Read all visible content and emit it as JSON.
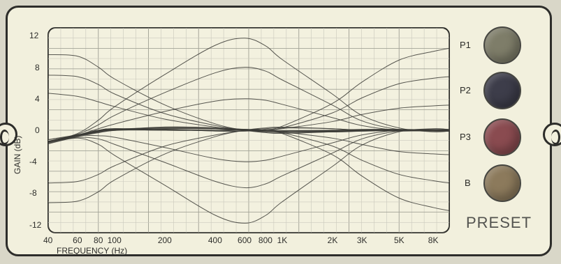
{
  "chart_data": {
    "type": "line",
    "title": "",
    "xlabel": "FREQUENCY (Hz)",
    "ylabel": "GAIN (dB)",
    "xscale": "log",
    "xlim": [
      40,
      10000
    ],
    "ylim": [
      -13,
      13
    ],
    "x_ticks": [
      {
        "label": "40",
        "value": 40
      },
      {
        "label": "60",
        "value": 60
      },
      {
        "label": "80",
        "value": 80
      },
      {
        "label": "100",
        "value": 100
      },
      {
        "label": "200",
        "value": 200
      },
      {
        "label": "400",
        "value": 400
      },
      {
        "label": "600",
        "value": 600
      },
      {
        "label": "800",
        "value": 800
      },
      {
        "label": "1K",
        "value": 1000
      },
      {
        "label": "2K",
        "value": 2000
      },
      {
        "label": "3K",
        "value": 3000
      },
      {
        "label": "5K",
        "value": 5000
      },
      {
        "label": "8K",
        "value": 8000
      }
    ],
    "y_ticks": [
      {
        "label": "12",
        "value": 12
      },
      {
        "label": "8",
        "value": 8
      },
      {
        "label": "4",
        "value": 4
      },
      {
        "label": "0",
        "value": 0
      },
      {
        "label": "-4",
        "value": -4
      },
      {
        "label": "-8",
        "value": -8
      },
      {
        "label": "-12",
        "value": -12
      }
    ],
    "series": [
      {
        "x": [
          40,
          60,
          80,
          100,
          200,
          400,
          600,
          800,
          1000,
          2000,
          3000,
          5000,
          8000,
          10000
        ],
        "values": [
          -1.5,
          -0.7,
          -0.2,
          0.1,
          0.3,
          0.2,
          0.0,
          -0.1,
          -0.1,
          0.0,
          0.1,
          0.1,
          0.0,
          -0.1
        ]
      },
      {
        "x": [
          40,
          60,
          80,
          100,
          200,
          400,
          600,
          800,
          1000,
          2000,
          3000,
          5000,
          8000,
          10000
        ],
        "values": [
          -1.2,
          -0.6,
          -0.2,
          0.0,
          0.2,
          0.2,
          0.1,
          0.0,
          -0.1,
          -0.1,
          0.0,
          0.0,
          0.0,
          -0.1
        ]
      },
      {
        "x": [
          40,
          60,
          80,
          100,
          200,
          400,
          600,
          800,
          1000,
          2000,
          3000,
          5000,
          8000,
          10000
        ],
        "values": [
          -1.7,
          -0.8,
          -0.3,
          0.0,
          0.4,
          0.3,
          0.1,
          0.0,
          -0.1,
          -0.2,
          -0.1,
          0.0,
          0.0,
          -0.1
        ]
      },
      {
        "x": [
          40,
          60,
          80,
          100,
          200,
          400,
          600,
          800,
          1000,
          2000,
          3000,
          5000,
          8000,
          10000
        ],
        "values": [
          9.6,
          9.4,
          8.0,
          6.5,
          3.2,
          0.8,
          0.0,
          -0.3,
          -0.4,
          -0.2,
          0.0,
          0.1,
          0.0,
          -0.1
        ]
      },
      {
        "x": [
          40,
          60,
          80,
          100,
          200,
          400,
          600,
          800,
          1000,
          2000,
          3000,
          5000,
          8000,
          10000
        ],
        "values": [
          7.0,
          6.8,
          5.8,
          4.6,
          2.1,
          0.6,
          0.0,
          -0.2,
          -0.3,
          -0.2,
          -0.1,
          0.0,
          0.0,
          -0.1
        ]
      },
      {
        "x": [
          40,
          60,
          80,
          100,
          200,
          400,
          600,
          800,
          1000,
          2000,
          3000,
          5000,
          8000,
          10000
        ],
        "values": [
          4.7,
          4.3,
          3.6,
          3.0,
          1.4,
          0.4,
          0.0,
          -0.2,
          -0.2,
          -0.1,
          0.0,
          0.0,
          0.0,
          -0.1
        ]
      },
      {
        "x": [
          40,
          60,
          80,
          100,
          200,
          400,
          600,
          800,
          1000,
          2000,
          3000,
          5000,
          8000,
          10000
        ],
        "values": [
          -9.2,
          -9.0,
          -7.8,
          -6.3,
          -3.0,
          -0.8,
          0.0,
          0.3,
          0.4,
          0.2,
          0.0,
          -0.1,
          0.0,
          0.1
        ]
      },
      {
        "x": [
          40,
          60,
          80,
          100,
          200,
          400,
          600,
          800,
          1000,
          2000,
          3000,
          5000,
          8000,
          10000
        ],
        "values": [
          -6.7,
          -6.5,
          -5.6,
          -4.5,
          -2.0,
          -0.6,
          0.0,
          0.2,
          0.3,
          0.2,
          0.0,
          -0.1,
          0.0,
          0.1
        ]
      },
      {
        "x": [
          40,
          60,
          80,
          100,
          200,
          400,
          600,
          800,
          1000,
          2000,
          3000,
          5000,
          8000,
          10000
        ],
        "values": [
          -1.5,
          -0.4,
          1.3,
          3.0,
          7.1,
          10.8,
          11.7,
          10.7,
          9.0,
          4.6,
          1.9,
          0.3,
          -0.2,
          -0.1
        ]
      },
      {
        "x": [
          40,
          60,
          80,
          100,
          200,
          400,
          600,
          800,
          1000,
          2000,
          3000,
          5000,
          8000,
          10000
        ],
        "values": [
          -1.4,
          -0.5,
          0.7,
          1.9,
          4.8,
          7.3,
          8.0,
          7.5,
          6.4,
          3.2,
          1.2,
          0.1,
          -0.1,
          -0.1
        ]
      },
      {
        "x": [
          40,
          60,
          80,
          100,
          200,
          400,
          600,
          800,
          1000,
          2000,
          3000,
          5000,
          8000,
          10000
        ],
        "values": [
          -1.4,
          -0.6,
          0.2,
          0.8,
          2.4,
          3.7,
          4.0,
          3.8,
          3.3,
          1.6,
          0.6,
          0.0,
          -0.1,
          -0.1
        ]
      },
      {
        "x": [
          40,
          60,
          80,
          100,
          200,
          400,
          600,
          800,
          1000,
          2000,
          3000,
          5000,
          8000,
          10000
        ],
        "values": [
          -1.6,
          -1.0,
          -1.8,
          -3.2,
          -7.0,
          -10.8,
          -11.8,
          -10.8,
          -9.1,
          -4.6,
          -1.9,
          -0.2,
          0.2,
          0.1
        ]
      },
      {
        "x": [
          40,
          60,
          80,
          100,
          200,
          400,
          600,
          800,
          1000,
          2000,
          3000,
          5000,
          8000,
          10000
        ],
        "values": [
          -1.5,
          -0.9,
          -1.1,
          -1.8,
          -4.1,
          -6.5,
          -7.3,
          -6.8,
          -5.8,
          -2.9,
          -1.1,
          -0.1,
          0.1,
          0.1
        ]
      },
      {
        "x": [
          40,
          60,
          80,
          100,
          200,
          400,
          600,
          800,
          1000,
          2000,
          3000,
          5000,
          8000,
          10000
        ],
        "values": [
          -1.4,
          -0.7,
          -0.7,
          -0.9,
          -2.2,
          -3.6,
          -4.0,
          -3.8,
          -3.3,
          -1.6,
          -0.6,
          0.0,
          0.1,
          0.0
        ]
      },
      {
        "x": [
          40,
          60,
          80,
          100,
          200,
          400,
          600,
          800,
          1000,
          2000,
          3000,
          5000,
          8000,
          10000
        ],
        "values": [
          -1.4,
          -0.6,
          0.0,
          0.2,
          0.1,
          -0.1,
          -0.1,
          0.1,
          0.5,
          3.4,
          6.1,
          8.9,
          10.0,
          10.4
        ]
      },
      {
        "x": [
          40,
          60,
          80,
          100,
          200,
          400,
          600,
          800,
          1000,
          2000,
          3000,
          5000,
          8000,
          10000
        ],
        "values": [
          -1.4,
          -0.6,
          0.0,
          0.2,
          0.1,
          -0.1,
          -0.1,
          0.0,
          0.3,
          2.2,
          4.1,
          5.9,
          6.6,
          6.8
        ]
      },
      {
        "x": [
          40,
          60,
          80,
          100,
          200,
          400,
          600,
          800,
          1000,
          2000,
          3000,
          5000,
          8000,
          10000
        ],
        "values": [
          -1.4,
          -0.6,
          0.0,
          0.2,
          0.1,
          0.0,
          -0.1,
          0.0,
          0.2,
          1.1,
          2.0,
          2.8,
          3.1,
          3.2
        ]
      },
      {
        "x": [
          40,
          60,
          80,
          100,
          200,
          400,
          600,
          800,
          1000,
          2000,
          3000,
          5000,
          8000,
          10000
        ],
        "values": [
          -1.5,
          -0.7,
          -0.1,
          0.1,
          0.0,
          0.0,
          0.1,
          0.0,
          -0.4,
          -3.1,
          -5.8,
          -8.6,
          -9.8,
          -10.2
        ]
      },
      {
        "x": [
          40,
          60,
          80,
          100,
          200,
          400,
          600,
          800,
          1000,
          2000,
          3000,
          5000,
          8000,
          10000
        ],
        "values": [
          -1.5,
          -0.7,
          -0.1,
          0.1,
          0.0,
          0.0,
          0.1,
          0.0,
          -0.3,
          -2.0,
          -3.8,
          -5.6,
          -6.4,
          -6.7
        ]
      },
      {
        "x": [
          40,
          60,
          80,
          100,
          200,
          400,
          600,
          800,
          1000,
          2000,
          3000,
          5000,
          8000,
          10000
        ],
        "values": [
          -1.5,
          -0.7,
          -0.1,
          0.1,
          0.0,
          0.0,
          0.1,
          0.0,
          -0.2,
          -1.0,
          -1.8,
          -2.7,
          -3.0,
          -3.1
        ]
      }
    ]
  },
  "presets": [
    {
      "label": "P1",
      "color": "#7e7d69"
    },
    {
      "label": "P2",
      "color": "#3d3d4a"
    },
    {
      "label": "P3",
      "color": "#8a4b50"
    },
    {
      "label": "B",
      "color": "#8c7a5c"
    }
  ],
  "preset_title": "PRESET",
  "colors": {
    "panel": "#f2f0dd",
    "grid": "#b7b7aa",
    "line": "#3b3b36",
    "border": "#2d2d2a"
  }
}
